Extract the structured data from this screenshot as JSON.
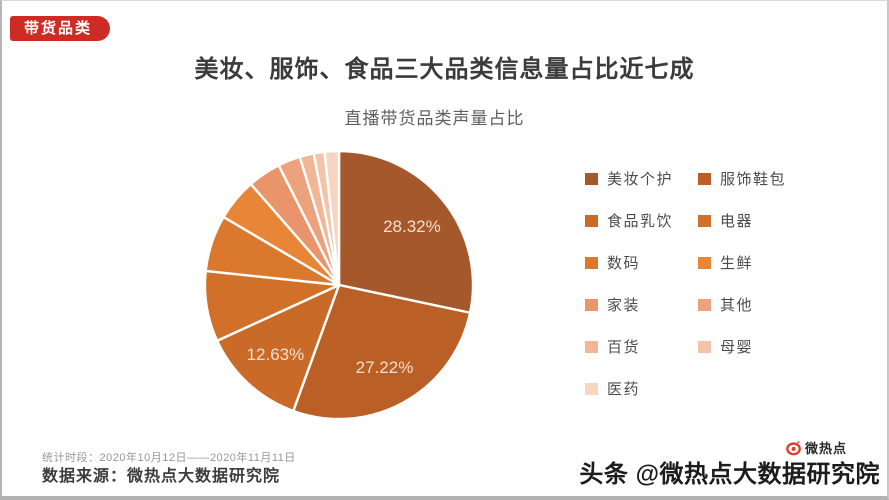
{
  "badge": {
    "label": "带货品类"
  },
  "title": "美妆、服饰、食品三大品类信息量占比近七成",
  "chart_data": {
    "type": "pie",
    "title": "直播带货品类声量占比",
    "value_unit": "%",
    "legend_position": "right",
    "start_angle_deg": 0,
    "slices": [
      {
        "name": "美妆个护",
        "value": 28.32,
        "color": "#A4582C",
        "label_visible": true
      },
      {
        "name": "服饰鞋包",
        "value": 27.22,
        "color": "#BA6027",
        "label_visible": true
      },
      {
        "name": "食品乳饮",
        "value": 12.63,
        "color": "#C96A28",
        "label_visible": true
      },
      {
        "name": "电器",
        "value": 8.5,
        "color": "#D17029",
        "label_visible": false
      },
      {
        "name": "数码",
        "value": 6.8,
        "color": "#DA782E",
        "label_visible": false
      },
      {
        "name": "生鲜",
        "value": 5.1,
        "color": "#E88537",
        "label_visible": false
      },
      {
        "name": "家装",
        "value": 4.0,
        "color": "#E9946A",
        "label_visible": false
      },
      {
        "name": "其他",
        "value": 2.7,
        "color": "#ECA37D",
        "label_visible": false
      },
      {
        "name": "百货",
        "value": 1.7,
        "color": "#F0B696",
        "label_visible": false
      },
      {
        "name": "母婴",
        "value": 1.3,
        "color": "#F3C4A9",
        "label_visible": false
      },
      {
        "name": "医药",
        "value": 1.73,
        "color": "#F7D5C2",
        "label_visible": false
      }
    ],
    "visible_data_labels": [
      "28.32%",
      "27.22%",
      "12.63%"
    ]
  },
  "footer": {
    "stats_period": "统计时段：2020年10月12日——2020年11月11日",
    "data_source": "数据来源：微热点大数据研究院",
    "watermark": "头条 @微热点大数据研究院",
    "logo_text": "微热点"
  },
  "colors": {
    "badge_red": "#CE2B25",
    "logo_red": "#E0392E",
    "pie_label_text": "#F3DFCC"
  }
}
